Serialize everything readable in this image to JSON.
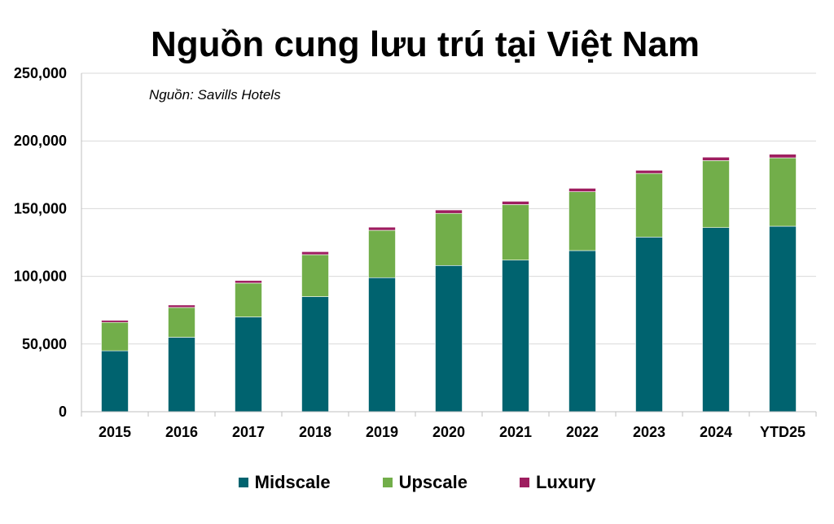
{
  "chart_data": {
    "type": "bar",
    "stacked": true,
    "title": "Nguồn cung lưu trú tại Việt Nam",
    "source_note": "Nguồn: Savills Hotels",
    "categories": [
      "2015",
      "2016",
      "2017",
      "2018",
      "2019",
      "2020",
      "2021",
      "2022",
      "2023",
      "2024",
      "YTD25"
    ],
    "series": [
      {
        "name": "Midscale",
        "color": "#00636F",
        "values": [
          45000,
          55000,
          70000,
          85000,
          99000,
          108000,
          112000,
          119000,
          129000,
          136000,
          137000
        ]
      },
      {
        "name": "Upscale",
        "color": "#72AE4A",
        "values": [
          21000,
          22000,
          25000,
          31000,
          35000,
          38500,
          41000,
          43500,
          47000,
          49500,
          50500
        ]
      },
      {
        "name": "Luxury",
        "color": "#9E1D5F",
        "values": [
          1500,
          1800,
          1900,
          2200,
          2300,
          2500,
          2400,
          2500,
          2300,
          2500,
          2700
        ]
      }
    ],
    "ylim": [
      0,
      250000
    ],
    "yticks": [
      0,
      50000,
      100000,
      150000,
      200000,
      250000
    ],
    "ytick_labels": [
      "0",
      "50,000",
      "100,000",
      "150,000",
      "200,000",
      "250,000"
    ],
    "xlabel": "",
    "ylabel": "",
    "grid": true,
    "legend_position": "bottom"
  }
}
